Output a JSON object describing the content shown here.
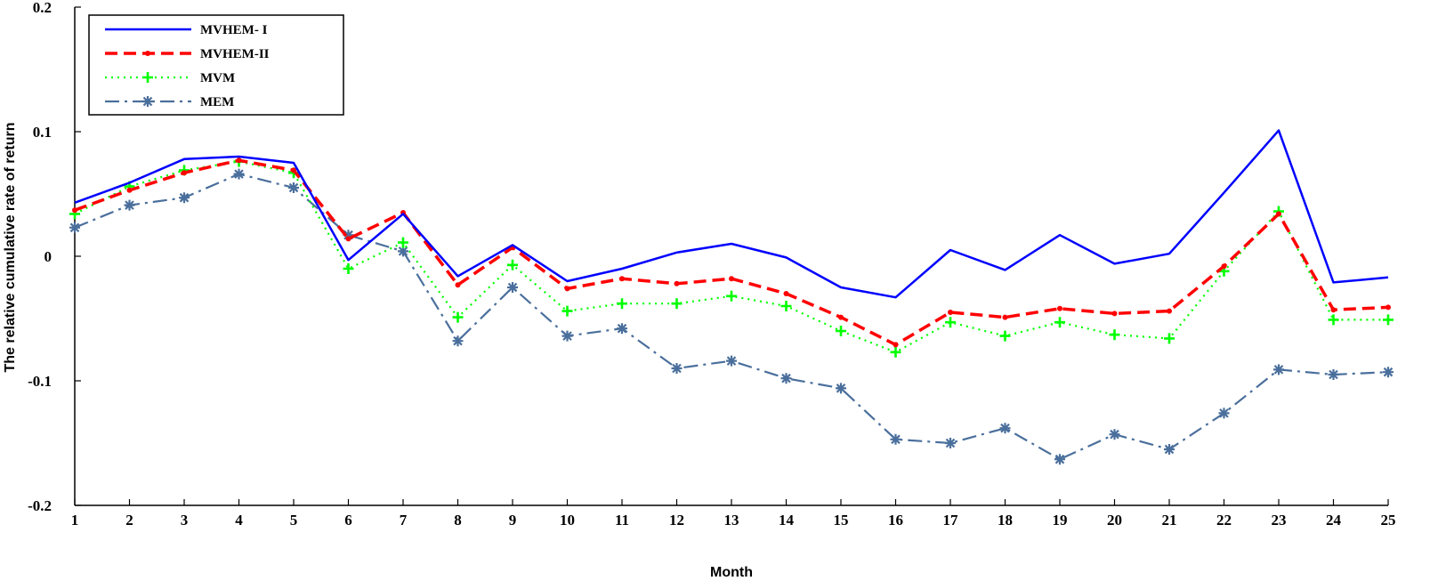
{
  "chart_data": {
    "type": "line",
    "xlabel": "Month",
    "ylabel": "The relative cumulative rate of return",
    "x": [
      1,
      2,
      3,
      4,
      5,
      6,
      7,
      8,
      9,
      10,
      11,
      12,
      13,
      14,
      15,
      16,
      17,
      18,
      19,
      20,
      21,
      22,
      23,
      24,
      25
    ],
    "xlim": [
      1,
      25
    ],
    "ylim": [
      -0.2,
      0.2
    ],
    "yticks": [
      0.2,
      0.1,
      0,
      -0.1,
      -0.2
    ],
    "ytick_labels": [
      "0.2",
      "0.1",
      "0",
      "-0.1",
      "-0.2"
    ],
    "grid": false,
    "legend_position": "top-left",
    "series": [
      {
        "name": "MVHEM- I",
        "color": "#0000ff",
        "values": [
          0.043,
          0.059,
          0.078,
          0.08,
          0.075,
          -0.003,
          0.034,
          -0.016,
          0.009,
          -0.02,
          -0.01,
          0.003,
          0.01,
          -0.001,
          -0.025,
          -0.033,
          0.005,
          -0.011,
          0.017,
          -0.006,
          0.002,
          0.051,
          0.101,
          -0.021,
          -0.017
        ]
      },
      {
        "name": "MVHEM-II",
        "color": "#ff0000",
        "values": [
          0.037,
          0.053,
          0.067,
          0.077,
          0.069,
          0.014,
          0.035,
          -0.023,
          0.007,
          -0.026,
          -0.018,
          -0.022,
          -0.018,
          -0.03,
          -0.049,
          -0.071,
          -0.045,
          -0.049,
          -0.042,
          -0.046,
          -0.044,
          -0.008,
          0.034,
          -0.043,
          -0.041
        ]
      },
      {
        "name": "MVM",
        "color": "#00ff00",
        "values": [
          0.034,
          0.056,
          0.069,
          0.076,
          0.067,
          -0.01,
          0.011,
          -0.049,
          -0.007,
          -0.044,
          -0.038,
          -0.038,
          -0.032,
          -0.04,
          -0.06,
          -0.077,
          -0.053,
          -0.064,
          -0.053,
          -0.063,
          -0.066,
          -0.012,
          0.036,
          -0.051,
          -0.051
        ]
      },
      {
        "name": "MEM",
        "color": "#4a6f9c",
        "values": [
          0.023,
          0.041,
          0.047,
          0.066,
          0.055,
          0.017,
          0.004,
          -0.068,
          -0.025,
          -0.064,
          -0.058,
          -0.09,
          -0.084,
          -0.098,
          -0.106,
          -0.147,
          -0.15,
          -0.138,
          -0.163,
          -0.143,
          -0.155,
          -0.126,
          -0.091,
          -0.095,
          -0.093
        ]
      }
    ]
  }
}
